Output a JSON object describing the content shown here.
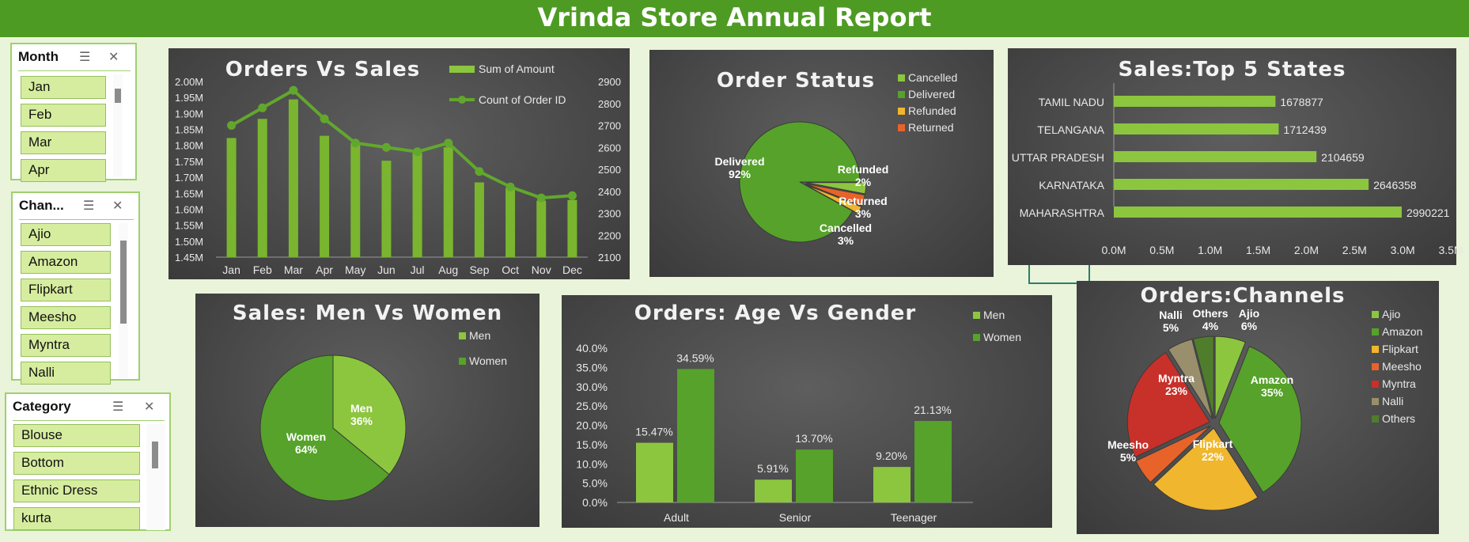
{
  "title": "Vrinda Store Annual Report",
  "slicers": {
    "month": {
      "header": "Month",
      "items": [
        "Jan",
        "Feb",
        "Mar",
        "Apr"
      ]
    },
    "channel": {
      "header": "Chan...",
      "items": [
        "Ajio",
        "Amazon",
        "Flipkart",
        "Meesho",
        "Myntra",
        "Nalli"
      ]
    },
    "category": {
      "header": "Category",
      "items": [
        "Blouse",
        "Bottom",
        "Ethnic Dress",
        "kurta"
      ]
    }
  },
  "chart_data": [
    {
      "id": "orders-vs-sales",
      "type": "bar+line",
      "title": "Orders Vs Sales",
      "categories": [
        "Jan",
        "Feb",
        "Mar",
        "Apr",
        "May",
        "Jun",
        "Jul",
        "Aug",
        "Sep",
        "Oct",
        "Nov",
        "Dec"
      ],
      "series": [
        {
          "name": "Sum of Amount",
          "type": "bar",
          "axis": "left",
          "values": [
            1823000,
            1883000,
            1944000,
            1830000,
            1807000,
            1752000,
            1778000,
            1794000,
            1684000,
            1667000,
            1627000,
            1629000
          ]
        },
        {
          "name": "Count of Order ID",
          "type": "line",
          "axis": "right",
          "values": [
            2700,
            2780,
            2860,
            2730,
            2620,
            2600,
            2580,
            2620,
            2490,
            2420,
            2370,
            2380
          ]
        }
      ],
      "left_ticks": [
        "1.45M",
        "1.50M",
        "1.55M",
        "1.60M",
        "1.65M",
        "1.70M",
        "1.75M",
        "1.80M",
        "1.85M",
        "1.90M",
        "1.95M",
        "2.00M"
      ],
      "right_ticks": [
        "2100",
        "2200",
        "2300",
        "2400",
        "2500",
        "2600",
        "2700",
        "2800",
        "2900"
      ],
      "ylim_left": [
        1450000,
        2000000
      ],
      "ylim_right": [
        2100,
        2900
      ],
      "legend_position": "top-right"
    },
    {
      "id": "order-status",
      "type": "pie",
      "title": "Order Status",
      "legend": [
        "Cancelled",
        "Delivered",
        "Refunded",
        "Returned"
      ],
      "slices": [
        {
          "name": "Delivered",
          "value": 92,
          "label": "Delivered",
          "pct": "92%",
          "color": "#56a22a"
        },
        {
          "name": "Refunded",
          "value": 2,
          "label": "Refunded",
          "pct": "2%",
          "color": "#f0b62d"
        },
        {
          "name": "Returned",
          "value": 3,
          "label": "Returned",
          "pct": "3%",
          "color": "#e8632a"
        },
        {
          "name": "Cancelled",
          "value": 3,
          "label": "Cancelled",
          "pct": "3%",
          "color": "#8cc63e"
        }
      ],
      "legend_colors": [
        "#8cc63e",
        "#56a22a",
        "#f0b62d",
        "#e8632a"
      ]
    },
    {
      "id": "top5-states",
      "type": "bar-horizontal",
      "title": "Sales:Top 5 States",
      "categories": [
        "TAMIL NADU",
        "TELANGANA",
        "UTTAR PRADESH",
        "KARNATAKA",
        "MAHARASHTRA"
      ],
      "values": [
        1678877,
        1712439,
        2104659,
        2646358,
        2990221
      ],
      "value_labels": [
        "1678877",
        "1712439",
        "2104659",
        "2646358",
        "2990221"
      ],
      "x_ticks": [
        "0.0M",
        "0.5M",
        "1.0M",
        "1.5M",
        "2.0M",
        "2.5M",
        "3.0M",
        "3.5M"
      ],
      "xlim": [
        0,
        3500000
      ]
    },
    {
      "id": "men-vs-women",
      "type": "pie",
      "title": "Sales: Men Vs Women",
      "legend": [
        "Men",
        "Women"
      ],
      "slices": [
        {
          "name": "Men",
          "value": 36,
          "label": "Men",
          "pct": "36%",
          "color": "#8cc63e"
        },
        {
          "name": "Women",
          "value": 64,
          "label": "Women",
          "pct": "64%",
          "color": "#56a22a"
        }
      ]
    },
    {
      "id": "age-vs-gender",
      "type": "bar",
      "title": "Orders: Age Vs Gender",
      "categories": [
        "Adult",
        "Senior",
        "Teenager"
      ],
      "series": [
        {
          "name": "Men",
          "values": [
            15.47,
            5.91,
            9.2
          ],
          "labels": [
            "15.47%",
            "5.91%",
            "9.20%"
          ],
          "color": "#8cc63e"
        },
        {
          "name": "Women",
          "values": [
            34.59,
            13.7,
            21.13
          ],
          "labels": [
            "34.59%",
            "13.70%",
            "21.13%"
          ],
          "color": "#56a22a"
        }
      ],
      "y_ticks": [
        "0.0%",
        "5.0%",
        "10.0%",
        "15.0%",
        "20.0%",
        "25.0%",
        "30.0%",
        "35.0%",
        "40.0%"
      ],
      "ylim": [
        0,
        40
      ]
    },
    {
      "id": "orders-channels",
      "type": "pie",
      "title": "Orders:Channels",
      "legend": [
        "Ajio",
        "Amazon",
        "Flipkart",
        "Meesho",
        "Myntra",
        "Nalli",
        "Others"
      ],
      "slices": [
        {
          "name": "Ajio",
          "value": 6,
          "label": "Ajio",
          "pct": "6%",
          "color": "#8cc63e"
        },
        {
          "name": "Amazon",
          "value": 35,
          "label": "Amazon",
          "pct": "35%",
          "color": "#56a22a"
        },
        {
          "name": "Flipkart",
          "value": 22,
          "label": "Flipkart",
          "pct": "22%",
          "color": "#f0b62d"
        },
        {
          "name": "Meesho",
          "value": 5,
          "label": "Meesho",
          "pct": "5%",
          "color": "#e8632a"
        },
        {
          "name": "Myntra",
          "value": 23,
          "label": "Myntra",
          "pct": "23%",
          "color": "#c8302a"
        },
        {
          "name": "Nalli",
          "value": 5,
          "label": "Nalli",
          "pct": "5%",
          "color": "#9a8f6c"
        },
        {
          "name": "Others",
          "value": 4,
          "label": "Others",
          "pct": "4%",
          "color": "#4f7d2c"
        }
      ]
    }
  ]
}
